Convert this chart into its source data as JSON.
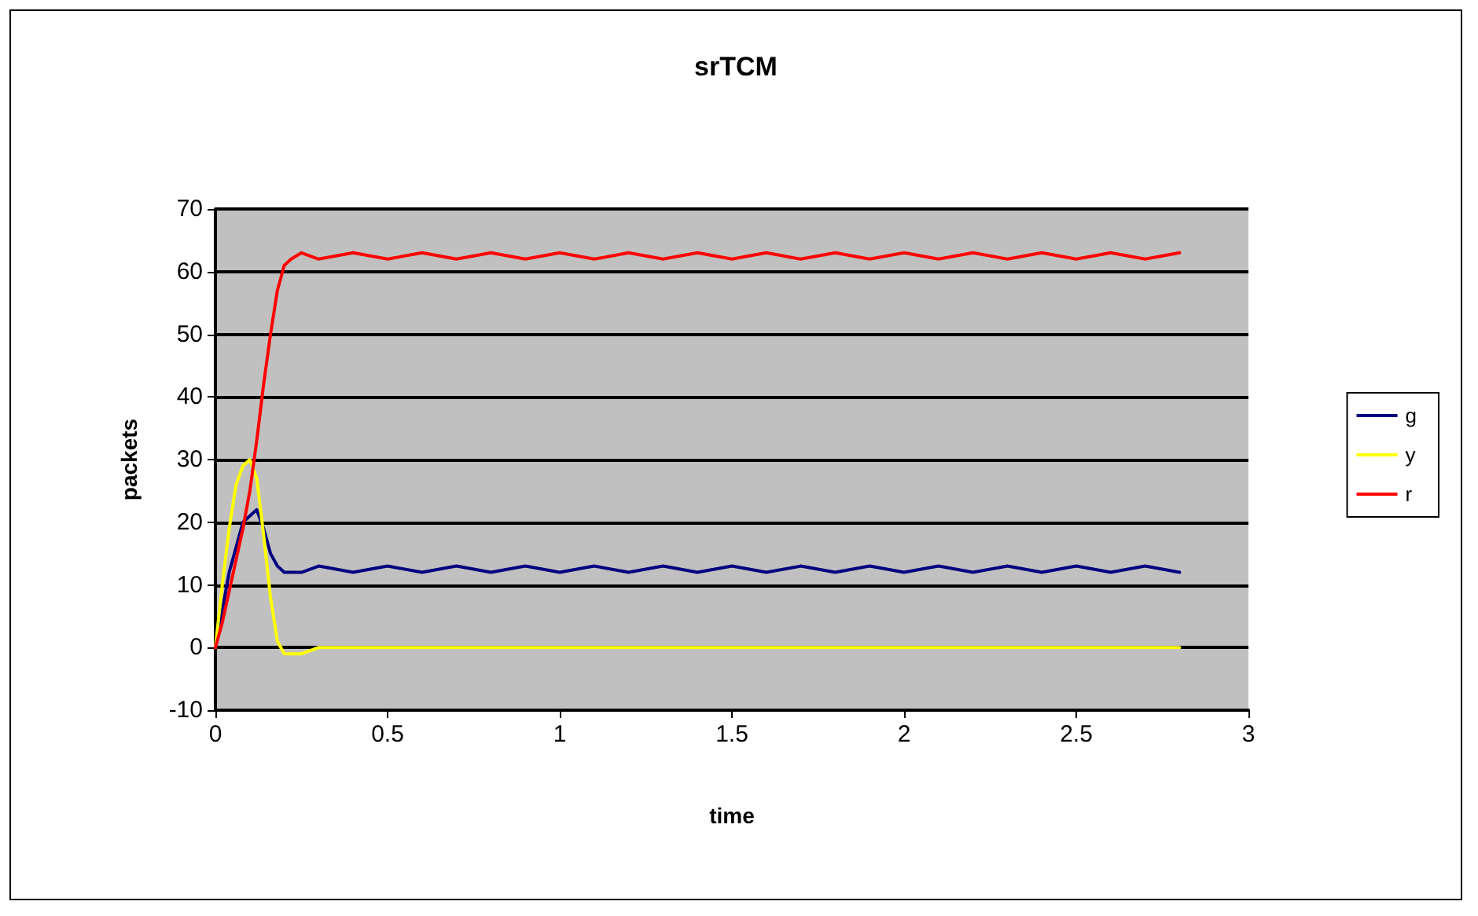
{
  "chart_data": {
    "type": "line",
    "title": "srTCM",
    "xlabel": "time",
    "ylabel": "packets",
    "x": [
      0,
      0.02,
      0.04,
      0.06,
      0.08,
      0.1,
      0.12,
      0.14,
      0.16,
      0.18,
      0.2,
      0.22,
      0.25,
      0.3,
      0.4,
      0.5,
      0.6,
      0.7,
      0.8,
      0.9,
      1,
      1.1,
      1.2,
      1.3,
      1.4,
      1.5,
      1.6,
      1.7,
      1.8,
      1.9,
      2,
      2.1,
      2.2,
      2.3,
      2.4,
      2.5,
      2.6,
      2.7,
      2.8
    ],
    "series": [
      {
        "name": "g",
        "color": "#000080",
        "values": [
          0,
          6,
          12,
          16,
          20,
          21,
          22,
          19,
          15,
          13,
          12,
          12,
          12,
          13,
          12,
          13,
          12,
          13,
          12,
          13,
          12,
          13,
          12,
          13,
          12,
          13,
          12,
          13,
          12,
          13,
          12,
          13,
          12,
          13,
          12,
          13,
          12,
          13,
          12
        ]
      },
      {
        "name": "y",
        "color": "#ffff00",
        "values": [
          0,
          10,
          19,
          26,
          29,
          30,
          27,
          18,
          8,
          1,
          -1,
          -1,
          -1,
          0,
          0,
          0,
          0,
          0,
          0,
          0,
          0,
          0,
          0,
          0,
          0,
          0,
          0,
          0,
          0,
          0,
          0,
          0,
          0,
          0,
          0,
          0,
          0,
          0,
          0
        ]
      },
      {
        "name": "r",
        "color": "#ff0000",
        "values": [
          0,
          4,
          9,
          14,
          19,
          25,
          33,
          42,
          50,
          57,
          61,
          62,
          63,
          62,
          63,
          62,
          63,
          62,
          63,
          62,
          63,
          62,
          63,
          62,
          63,
          62,
          63,
          62,
          63,
          62,
          63,
          62,
          63,
          62,
          63,
          62,
          63,
          62,
          63
        ]
      }
    ],
    "xlim": [
      0,
      3
    ],
    "xticks": [
      0,
      0.5,
      1,
      1.5,
      2,
      2.5,
      3
    ],
    "ylim": [
      -10,
      70
    ],
    "yticks": [
      -10,
      0,
      10,
      20,
      30,
      40,
      50,
      60,
      70
    ],
    "grid": "y",
    "legend": "right",
    "marker": "none",
    "line_style": "solid"
  }
}
